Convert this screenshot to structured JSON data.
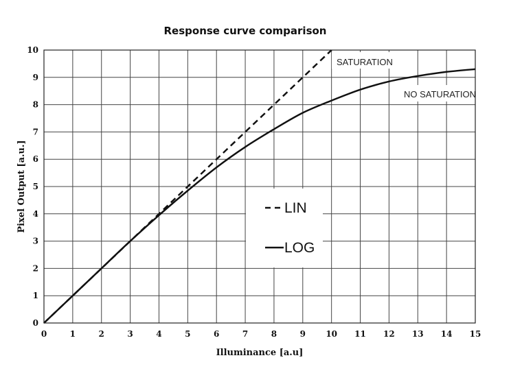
{
  "chart_data": {
    "type": "line",
    "title": "Response curve comparison",
    "xlabel": "Illuminance [a.u]",
    "ylabel": "Pixel Output [a.u.]",
    "xlim": [
      0,
      15
    ],
    "ylim": [
      0,
      10
    ],
    "xticks": [
      "0",
      "1",
      "2",
      "3",
      "4",
      "5",
      "6",
      "7",
      "8",
      "9",
      "10",
      "11",
      "12",
      "13",
      "14",
      "15"
    ],
    "yticks": [
      "0",
      "1",
      "2",
      "3",
      "4",
      "5",
      "6",
      "7",
      "8",
      "9",
      "10"
    ],
    "grid": true,
    "legend_position": "center",
    "series": [
      {
        "name": "LIN",
        "style": "dashed",
        "color": "#111111",
        "x": [
          0,
          10
        ],
        "y": [
          0,
          10
        ]
      },
      {
        "name": "LOG",
        "style": "solid",
        "color": "#111111",
        "x": [
          0,
          1,
          2,
          3,
          4,
          5,
          6,
          7,
          8,
          9,
          10,
          11,
          12,
          13,
          14,
          15
        ],
        "y": [
          0,
          1.0,
          2.0,
          3.0,
          3.95,
          4.85,
          5.7,
          6.45,
          7.1,
          7.7,
          8.15,
          8.55,
          8.85,
          9.05,
          9.2,
          9.3
        ]
      }
    ],
    "annotations": [
      "SATURATION",
      "NO SATURATION"
    ]
  }
}
